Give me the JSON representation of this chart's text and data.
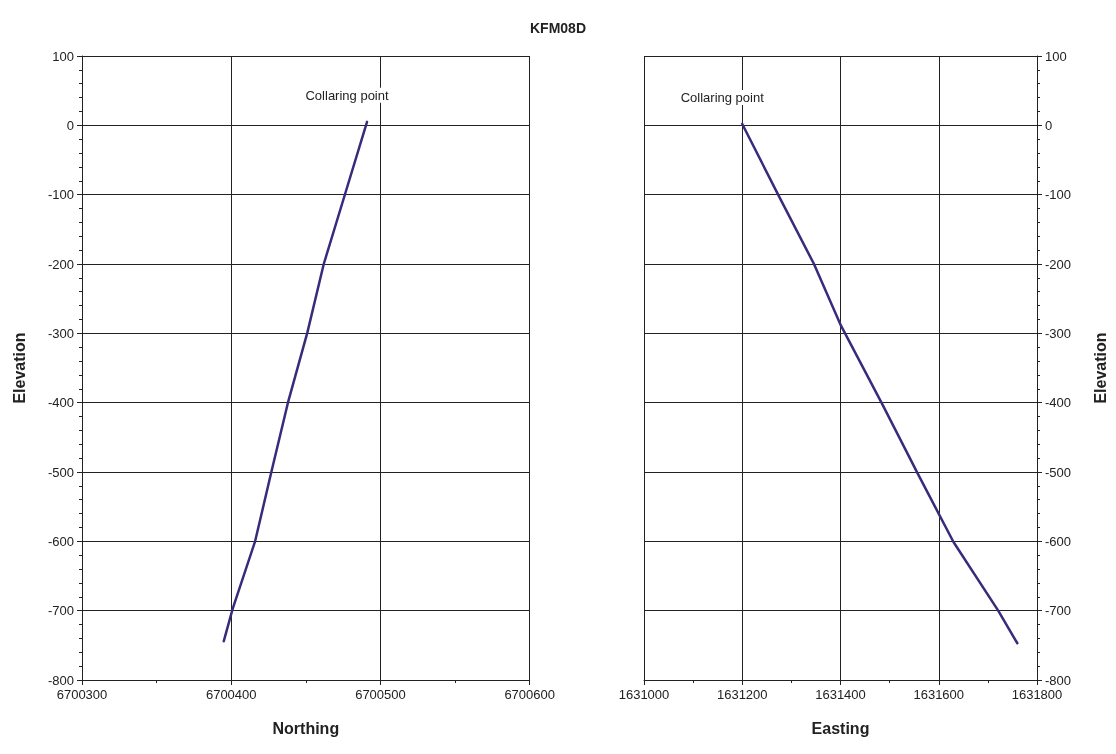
{
  "chart_data": [
    {
      "type": "line",
      "title": "KFM08D",
      "xlabel": "Northing",
      "ylabel": "Elevation",
      "xlim": [
        6700300,
        6700600
      ],
      "xticks": [
        6700300,
        6700400,
        6700500,
        6700600
      ],
      "ylim": [
        -800,
        100
      ],
      "yticks": [
        -800,
        -700,
        -600,
        -500,
        -400,
        -300,
        -200,
        -100,
        0,
        100
      ],
      "grid": true,
      "marker": "none",
      "line_style": "solid",
      "annotations": [
        {
          "text": "Collaring point",
          "x": 6700491,
          "y": 5
        }
      ],
      "series": [
        {
          "color": "#3b2a7c",
          "x": [
            6700491,
            6700477,
            6700462,
            6700451,
            6700438,
            6700427,
            6700416,
            6700401,
            6700395
          ],
          "values": [
            5,
            -94,
            -200,
            -299,
            -400,
            -499,
            -600,
            -697,
            -744
          ]
        }
      ]
    },
    {
      "type": "line",
      "xlabel": "Easting",
      "ylabel": "Elevation",
      "xlim": [
        1631000,
        1631800
      ],
      "xticks": [
        1631000,
        1631200,
        1631400,
        1631600,
        1631800
      ],
      "ylim": [
        -800,
        100
      ],
      "yticks": [
        -800,
        -700,
        -600,
        -500,
        -400,
        -300,
        -200,
        -100,
        0,
        100
      ],
      "grid": true,
      "marker": "none",
      "line_style": "solid",
      "annotations": [
        {
          "text": "Collaring point",
          "x": 1631200,
          "y": 2
        }
      ],
      "series": [
        {
          "color": "#3b2a7c",
          "x": [
            1631200,
            1631273,
            1631346,
            1631401,
            1631485,
            1631557,
            1631630,
            1631721,
            1631760
          ],
          "values": [
            2,
            -100,
            -200,
            -289,
            -402,
            -502,
            -601,
            -700,
            -747
          ]
        }
      ]
    }
  ]
}
